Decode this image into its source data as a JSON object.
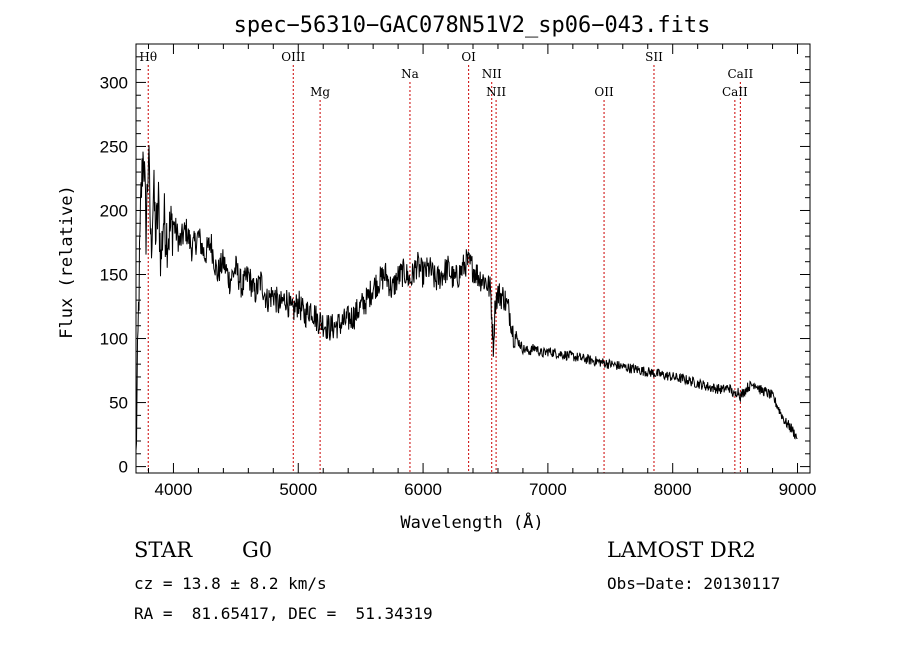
{
  "chart_data": {
    "type": "line",
    "title": "spec−56310−GAC078N51V2_sp06−043.fits",
    "xlabel": "Wavelength (Å)",
    "ylabel": "Flux (relative)",
    "xlim": [
      3700,
      9100
    ],
    "ylim": [
      -5,
      330
    ],
    "x_ticks": [
      4000,
      5000,
      6000,
      7000,
      8000,
      9000
    ],
    "y_ticks": [
      0,
      50,
      100,
      150,
      200,
      250,
      300
    ],
    "series": [
      {
        "x": [
          3700,
          3720,
          3740,
          3760,
          3780,
          3800,
          3820,
          3840,
          3860,
          3880,
          3900,
          3920,
          3950,
          4000,
          4050,
          4100,
          4150,
          4200,
          4250,
          4300,
          4350,
          4400,
          4450,
          4500,
          4550,
          4600,
          4650,
          4700,
          4750,
          4800,
          4850,
          4900,
          4950,
          5000,
          5050,
          5100,
          5150,
          5200,
          5250,
          5300,
          5350,
          5400,
          5450,
          5500,
          5550,
          5600,
          5650,
          5700,
          5750,
          5800,
          5850,
          5900,
          5950,
          6000,
          6050,
          6100,
          6150,
          6200,
          6250,
          6300,
          6350,
          6400,
          6450,
          6500,
          6540,
          6563,
          6580,
          6600,
          6650,
          6700,
          6720,
          6750,
          6800,
          6850,
          6900,
          6950,
          7000,
          7100,
          7200,
          7300,
          7400,
          7500,
          7600,
          7700,
          7800,
          7900,
          8000,
          8100,
          8200,
          8300,
          8400,
          8450,
          8498,
          8520,
          8542,
          8600,
          8662,
          8700,
          8750,
          8800,
          8850,
          8900,
          8950,
          8980,
          9000
        ],
        "y": [
          5,
          120,
          210,
          250,
          185,
          245,
          170,
          215,
          180,
          205,
          160,
          195,
          180,
          190,
          175,
          185,
          170,
          180,
          165,
          175,
          150,
          160,
          145,
          155,
          140,
          150,
          135,
          145,
          130,
          135,
          125,
          132,
          120,
          128,
          118,
          124,
          115,
          112,
          108,
          110,
          112,
          115,
          118,
          125,
          130,
          140,
          145,
          150,
          138,
          148,
          152,
          145,
          158,
          150,
          155,
          145,
          150,
          155,
          145,
          152,
          160,
          155,
          148,
          145,
          138,
          95,
          130,
          135,
          132,
          118,
          105,
          100,
          92,
          90,
          93,
          88,
          90,
          88,
          86,
          84,
          82,
          80,
          78,
          76,
          74,
          72,
          70,
          68,
          65,
          62,
          60,
          62,
          55,
          60,
          55,
          62,
          65,
          60,
          58,
          55,
          45,
          35,
          30,
          25,
          22
        ]
      }
    ],
    "line_markers": [
      {
        "name": "Hθ",
        "wavelength": 3798,
        "row": "top"
      },
      {
        "name": "OIII",
        "wavelength": 4960,
        "row": "top"
      },
      {
        "name": "Mg",
        "wavelength": 5175,
        "row": "low"
      },
      {
        "name": "Na",
        "wavelength": 5895,
        "row": "mid"
      },
      {
        "name": "OI",
        "wavelength": 6365,
        "row": "top"
      },
      {
        "name": "NII",
        "wavelength": 6550,
        "row": "mid"
      },
      {
        "name": "NII",
        "wavelength": 6585,
        "row": "low"
      },
      {
        "name": "OII",
        "wavelength": 7450,
        "row": "low"
      },
      {
        "name": "SII",
        "wavelength": 7850,
        "row": "top"
      },
      {
        "name": "CaII",
        "wavelength": 8542,
        "row": "mid"
      },
      {
        "name": "CaII",
        "wavelength": 8498,
        "row": "low"
      }
    ],
    "grid": false,
    "legend": "none",
    "colors": {
      "spectrum": "#000000",
      "marker_line": "#cc0000",
      "frame": "#000000"
    }
  },
  "info": {
    "class_type": "STAR",
    "subclass": "G0",
    "survey": "LAMOST DR2",
    "redshift_text": "cz = 13.8 ± 8.2 km/s",
    "obs_date": "Obs−Date: 20130117",
    "coords": "RA =  81.65417, DEC =  51.34319"
  }
}
